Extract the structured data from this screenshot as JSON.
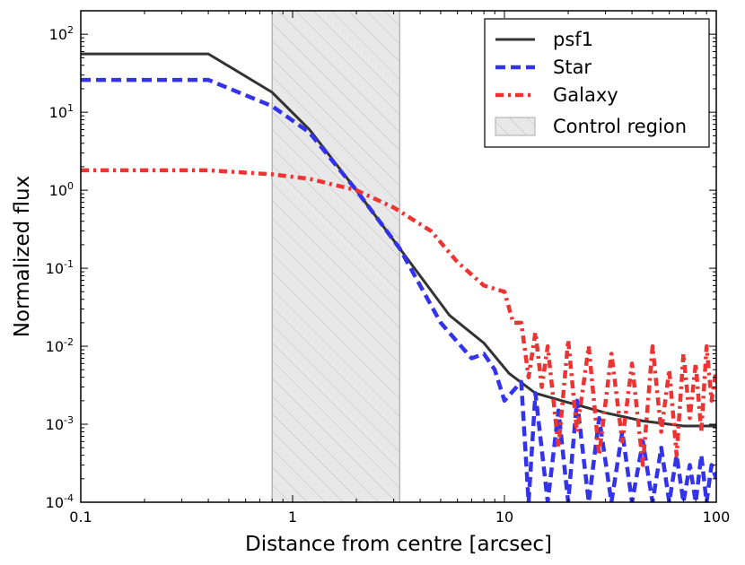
{
  "chart_data": {
    "type": "line",
    "xlabel": "Distance from centre [arcsec]",
    "ylabel": "Normalized flux",
    "xscale": "log",
    "yscale": "log",
    "xlim": [
      0.1,
      100
    ],
    "ylim": [
      0.0001,
      200
    ],
    "grid": false,
    "legend_position": "top-right",
    "x_ticks": [
      {
        "value": 0.1,
        "label": "0.1"
      },
      {
        "value": 1,
        "label": "1"
      },
      {
        "value": 10,
        "label": "10"
      },
      {
        "value": 100,
        "label": "100"
      }
    ],
    "y_ticks": [
      {
        "value": 0.0001,
        "base": "10",
        "exp": "-4"
      },
      {
        "value": 0.001,
        "base": "10",
        "exp": "-3"
      },
      {
        "value": 0.01,
        "base": "10",
        "exp": "-2"
      },
      {
        "value": 0.1,
        "base": "10",
        "exp": "-1"
      },
      {
        "value": 1,
        "base": "10",
        "exp": "0"
      },
      {
        "value": 10,
        "base": "10",
        "exp": "1"
      },
      {
        "value": 100,
        "base": "10",
        "exp": "2"
      }
    ],
    "shaded_region": {
      "name": "Control region",
      "x": [
        0.8,
        3.2
      ],
      "color": "#cccccc"
    },
    "series": [
      {
        "name": "psf1",
        "color": "#333333",
        "style": "solid",
        "x": [
          0.1,
          0.4,
          0.8,
          1.2,
          2.0,
          3.2,
          5.5,
          8.0,
          10.5,
          14,
          20,
          30,
          45,
          70,
          100
        ],
        "y": [
          56,
          56,
          18,
          6.0,
          1.0,
          0.18,
          0.025,
          0.011,
          0.0045,
          0.0025,
          0.0019,
          0.0014,
          0.0011,
          0.00095,
          0.00095
        ]
      },
      {
        "name": "Star",
        "color": "#3333ee",
        "style": "dashed",
        "x": [
          0.1,
          0.4,
          0.8,
          1.2,
          2.0,
          3.2,
          5.0,
          7.0,
          8.0,
          9.0,
          10.0,
          12.0,
          13.0,
          14.0,
          16.0,
          18.0,
          20.0,
          22.0,
          25.0,
          28.0,
          32.0,
          36.0,
          40.0,
          45.0,
          50.0,
          55.0,
          60.0,
          65.0,
          70.0,
          75.0,
          80.0,
          85.0,
          90.0,
          95.0,
          100.0
        ],
        "y": [
          26,
          26,
          12,
          5.5,
          1.0,
          0.18,
          0.02,
          0.007,
          0.008,
          0.005,
          0.002,
          0.0035,
          0.0001,
          0.0025,
          0.0001,
          0.0015,
          0.0001,
          0.002,
          0.0001,
          0.0012,
          0.0001,
          0.0008,
          0.0001,
          0.0006,
          0.0001,
          0.0005,
          0.0001,
          0.0004,
          0.0001,
          0.0003,
          0.0001,
          0.0004,
          0.0001,
          0.0003,
          0.0002
        ]
      },
      {
        "name": "Galaxy",
        "color": "#ee3333",
        "style": "dashdot",
        "x": [
          0.1,
          0.4,
          0.8,
          1.2,
          2.0,
          3.0,
          4.5,
          6.0,
          8.0,
          10.0,
          11.0,
          12.0,
          13.0,
          14.0,
          15.0,
          16.0,
          18.0,
          20.0,
          22.0,
          25.0,
          28.0,
          32.0,
          36.0,
          40.0,
          45.0,
          50.0,
          55.0,
          60.0,
          65.0,
          70.0,
          75.0,
          80.0,
          85.0,
          90.0,
          95.0,
          100.0
        ],
        "y": [
          1.8,
          1.8,
          1.6,
          1.4,
          1.0,
          0.6,
          0.3,
          0.12,
          0.06,
          0.05,
          0.02,
          0.02,
          0.004,
          0.015,
          0.003,
          0.01,
          0.0005,
          0.012,
          0.0008,
          0.01,
          0.0004,
          0.008,
          0.0006,
          0.006,
          0.0003,
          0.01,
          0.0008,
          0.005,
          0.0004,
          0.008,
          0.0012,
          0.006,
          0.0008,
          0.01,
          0.002,
          0.005
        ]
      }
    ]
  }
}
